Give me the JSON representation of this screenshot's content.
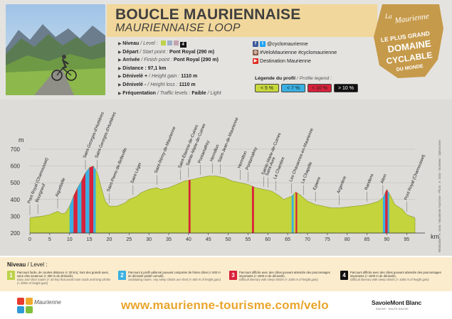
{
  "header": {
    "title": "BOUCLE MAURIENNAISE",
    "subtitle": "MAURIENNAISE LOOP"
  },
  "info": {
    "niveau_label": "Niveau",
    "niveau_en": " / Level : ",
    "niveau_value": "4",
    "depart_label": "Départ",
    "depart_en": " / Start point : ",
    "depart_value": "Pont Royal (290 m)",
    "arrivee_label": "Arrivée",
    "arrivee_en": " / Finish point : ",
    "arrivee_value": "Pont Royal (290 m)",
    "distance_label": "Distance",
    "distance_value": " : 97,1 km",
    "denivele_plus_label": "Dénivelé +",
    "denivele_plus_en": " / Height gain : ",
    "denivele_plus_value": "1110 m",
    "denivele_moins_label": "Dénivelé -",
    "denivele_moins_en": " / Height loss : ",
    "denivele_moins_value": "1110 m",
    "frequentation_label": "Fréquentation",
    "frequentation_en": " / Traffic levels : ",
    "frequentation_value": "Faible",
    "frequentation_value_en": " / Light"
  },
  "social": {
    "twitter_handle": "@cyclomaurienne",
    "hashtags": "#VeloMaurienne #cyclomaurienne",
    "youtube": "Destination Maurienne"
  },
  "legend": {
    "title": "Légende du profil",
    "title_en": " / Profile legend :",
    "items": [
      {
        "label": "< 5 %",
        "color": "#c7d83a",
        "text_color": "#222222"
      },
      {
        "label": "< 7 %",
        "color": "#3ab0e2",
        "text_color": "#222222"
      },
      {
        "label": "< 10 %",
        "color": "#d8213a",
        "text_color": "#222222"
      },
      {
        "label": "> 10 %",
        "color": "#111111",
        "text_color": "#ffffff"
      }
    ]
  },
  "badge": {
    "line1": "La",
    "line2": "Maurienne",
    "line3": "LE PLUS GRAND",
    "line4": "DOMAINE",
    "line5": "CYCLABLE",
    "line6": "DU MONDE"
  },
  "chart_data": {
    "type": "area",
    "title": "",
    "xlabel": "km",
    "ylabel": "m",
    "xlim": [
      0,
      97.1
    ],
    "ylim": [
      200,
      700
    ],
    "x_ticks": [
      0,
      5,
      10,
      15,
      20,
      25,
      30,
      35,
      40,
      45,
      50,
      55,
      60,
      65,
      70,
      75,
      80,
      85,
      90,
      95
    ],
    "y_ticks": [
      200,
      300,
      400,
      500,
      600,
      700
    ],
    "x": [
      0,
      3,
      5,
      7,
      8,
      9,
      10,
      11,
      12,
      13,
      14,
      15,
      16,
      17,
      18,
      19,
      20,
      22,
      24,
      25,
      27,
      28,
      30,
      32,
      33,
      35,
      37,
      39,
      41,
      43,
      45,
      47,
      49,
      51,
      53,
      55,
      57,
      59,
      61,
      63,
      64,
      65,
      66,
      67,
      68,
      70,
      72,
      74,
      76,
      78,
      80,
      82,
      84,
      86,
      88,
      89,
      90,
      91,
      92,
      94,
      95,
      97.1
    ],
    "y": [
      290,
      300,
      310,
      330,
      315,
      320,
      360,
      420,
      470,
      510,
      560,
      590,
      600,
      560,
      470,
      390,
      360,
      360,
      380,
      400,
      420,
      440,
      460,
      470,
      460,
      470,
      490,
      510,
      520,
      530,
      540,
      540,
      530,
      510,
      500,
      490,
      470,
      460,
      450,
      420,
      400,
      410,
      420,
      445,
      430,
      390,
      370,
      360,
      350,
      350,
      355,
      360,
      365,
      375,
      390,
      410,
      460,
      420,
      370,
      340,
      310,
      290
    ],
    "segments": [
      {
        "from": 10,
        "to": 11,
        "grade": "< 7 %"
      },
      {
        "from": 11,
        "to": 12,
        "grade": "< 10 %"
      },
      {
        "from": 12,
        "to": 13,
        "grade": "< 7 %"
      },
      {
        "from": 13,
        "to": 14,
        "grade": "< 10 %"
      },
      {
        "from": 14,
        "to": 15,
        "grade": "< 7 %"
      },
      {
        "from": 15,
        "to": 16,
        "grade": "< 10 %"
      },
      {
        "from": 16,
        "to": 16.6,
        "grade": "< 7 %"
      },
      {
        "from": 40,
        "to": 40.5,
        "grade": "< 10 %"
      },
      {
        "from": 56,
        "to": 56.5,
        "grade": "< 10 %"
      },
      {
        "from": 66,
        "to": 66.5,
        "grade": "< 7 %"
      },
      {
        "from": 67,
        "to": 67.4,
        "grade": "< 10 %"
      },
      {
        "from": 89,
        "to": 89.6,
        "grade": "< 7 %"
      },
      {
        "from": 89.6,
        "to": 90.2,
        "grade": "< 10 %"
      },
      {
        "from": 90.2,
        "to": 90.6,
        "grade": "< 7 %"
      }
    ],
    "places": [
      {
        "name": "Pont Royal (Chamousset)",
        "km": 0
      },
      {
        "name": "Bourgneuf",
        "km": 2
      },
      {
        "name": "Aiguebelle",
        "km": 7
      },
      {
        "name": "Saint-Georges-d'Hurtières",
        "km": 14
      },
      {
        "name": "Saint-Georges-d'Hurtières",
        "km": 17
      },
      {
        "name": "Saint-Pierre-de-Belleville",
        "km": 20
      },
      {
        "name": "Saint-Léger",
        "km": 26
      },
      {
        "name": "Saint-Rémy-de-Maurienne",
        "km": 32
      },
      {
        "name": "Saint-Étienne-de-Cuines",
        "km": 38
      },
      {
        "name": "Sainte-Marie-de-Cuines",
        "km": 40
      },
      {
        "name": "Pontamafrey",
        "km": 43
      },
      {
        "name": "Hermillon",
        "km": 46
      },
      {
        "name": "Saint-Jean-de-Maurienne",
        "km": 48
      },
      {
        "name": "Hermillon",
        "km": 53
      },
      {
        "name": "Pontamafrey",
        "km": 55
      },
      {
        "name": "Sainte-Marie-de-Cuines",
        "km": 59
      },
      {
        "name": "Saint-Avre",
        "km": 60
      },
      {
        "name": "La Chambre",
        "km": 62
      },
      {
        "name": "Les Chavannes-en-Maurienne",
        "km": 66
      },
      {
        "name": "La Chapelle",
        "km": 69
      },
      {
        "name": "Epierre",
        "km": 72
      },
      {
        "name": "Argentine",
        "km": 78
      },
      {
        "name": "Randens",
        "km": 85
      },
      {
        "name": "Aiton",
        "km": 89
      },
      {
        "name": "Pont Royal (Chamousset)",
        "km": 95
      }
    ]
  },
  "levels": {
    "title": "Niveau",
    "title_en": " / Level :",
    "items": [
      {
        "num": "1",
        "color": "#bcd24a",
        "fr": "Parcours facile, de courtes distance (< 30 km), hors des grands axes, sans côte soutenue (< 300 m de dénivelé).",
        "en": "Easy and short routes (< 30 km) that avoid main roads and long climbs (< 300m of height gain)"
      },
      {
        "num": "2",
        "color": "#3ab0e2",
        "fr": "Parcours à profil vallonné pouvant comporter de fortes côtes (< 600 m de dénivelé positif cumulé).",
        "en": "Undulating routes. Any steep climbs are short (< 600 m of height gain)"
      },
      {
        "num": "3",
        "color": "#d8213a",
        "fr": "Parcours difficile avec des côtes pouvant atteindre des pourcentages importants (< 1000 m de dénivelé).",
        "en": "Difficult itinerary with steep climbs (< 1000 m of height gain)"
      },
      {
        "num": "4",
        "color": "#111111",
        "fr": "Parcours difficile avec des côtes pouvant atteindre des pourcentages importants (> 1000 m de dénivelé).",
        "en": "Difficult itinerary with steep climbs (> 1000 m of height gain)"
      }
    ]
  },
  "footer": {
    "url": "www.maurienne-tourisme.com/velo",
    "logo_text": "Maurienne",
    "partner": "SavoieMont Blanc",
    "partner_sub": "SAVOIE · HAUTE-SAVOIE"
  },
  "credits": "Réalisation : A. Gras / Maurienne Tourisme - Photo : A. Gras - Données : Openrunner"
}
